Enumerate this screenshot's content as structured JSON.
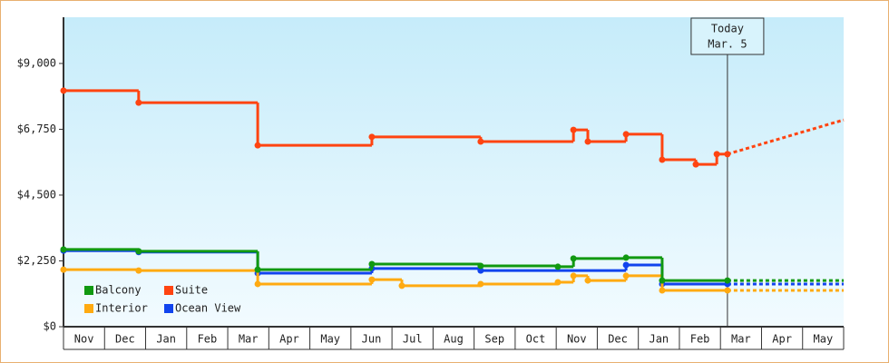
{
  "chart_data": {
    "type": "step-line",
    "xlim": [
      0,
      19
    ],
    "ylim": [
      0,
      10580
    ],
    "xticks": [
      {
        "value": 0.5,
        "label": "Nov"
      },
      {
        "value": 1.5,
        "label": "Dec"
      },
      {
        "value": 2.5,
        "label": "Jan"
      },
      {
        "value": 3.5,
        "label": "Feb"
      },
      {
        "value": 4.5,
        "label": "Mar"
      },
      {
        "value": 5.5,
        "label": "Apr"
      },
      {
        "value": 6.5,
        "label": "May"
      },
      {
        "value": 7.5,
        "label": "Jun"
      },
      {
        "value": 8.5,
        "label": "Jul"
      },
      {
        "value": 9.5,
        "label": "Aug"
      },
      {
        "value": 10.5,
        "label": "Sep"
      },
      {
        "value": 11.5,
        "label": "Oct"
      },
      {
        "value": 12.5,
        "label": "Nov"
      },
      {
        "value": 13.5,
        "label": "Dec"
      },
      {
        "value": 14.5,
        "label": "Jan"
      },
      {
        "value": 15.5,
        "label": "Feb"
      },
      {
        "value": 16.5,
        "label": "Mar"
      },
      {
        "value": 17.5,
        "label": "Apr"
      },
      {
        "value": 18.5,
        "label": "May"
      }
    ],
    "yticks": [
      {
        "value": 0,
        "label": "$0"
      },
      {
        "value": 2250,
        "label": "$2,250"
      },
      {
        "value": 4500,
        "label": "$4,500"
      },
      {
        "value": 6750,
        "label": "$6,750"
      },
      {
        "value": 9000,
        "label": "$9,000"
      }
    ],
    "today": {
      "x": 16.17,
      "label": "Today",
      "date": "Mar. 5"
    },
    "series": [
      {
        "name": "Balcony",
        "color": "#119911",
        "x": [
          0,
          1.83,
          4.73,
          7.51,
          10.16,
          12.04,
          12.42,
          13.7,
          14.58,
          16.17
        ],
        "values": [
          2640,
          2580,
          1950,
          2140,
          2080,
          2050,
          2330,
          2360,
          1580,
          1580
        ],
        "projection": {
          "x": [
            16.17,
            19
          ],
          "values": [
            1580,
            1580
          ]
        }
      },
      {
        "name": "Suite",
        "color": "#ff4411",
        "x": [
          0,
          1.83,
          4.73,
          7.51,
          10.16,
          12.42,
          12.77,
          13.7,
          14.58,
          15.4,
          15.91,
          16.17
        ],
        "values": [
          8070,
          7660,
          6200,
          6490,
          6330,
          6730,
          6330,
          6580,
          5710,
          5550,
          5900,
          5900
        ],
        "projection": {
          "x": [
            16.17,
            19
          ],
          "values": [
            5900,
            7070
          ]
        }
      },
      {
        "name": "Interior",
        "color": "#ffaa11",
        "x": [
          0,
          1.83,
          4.73,
          7.51,
          8.24,
          10.16,
          12.04,
          12.42,
          12.77,
          13.7,
          14.58,
          16.17
        ],
        "values": [
          1950,
          1920,
          1460,
          1610,
          1400,
          1460,
          1520,
          1740,
          1580,
          1740,
          1240,
          1240
        ],
        "projection": {
          "x": [
            16.17,
            19
          ],
          "values": [
            1240,
            1240
          ]
        }
      },
      {
        "name": "Ocean View",
        "color": "#1144ee",
        "x": [
          0,
          1.83,
          4.73,
          7.51,
          10.16,
          13.7,
          14.58,
          16.17
        ],
        "values": [
          2600,
          2550,
          1830,
          1990,
          1920,
          2110,
          1460,
          1460
        ],
        "projection": {
          "x": [
            16.17,
            19
          ],
          "values": [
            1460,
            1460
          ]
        }
      }
    ]
  }
}
